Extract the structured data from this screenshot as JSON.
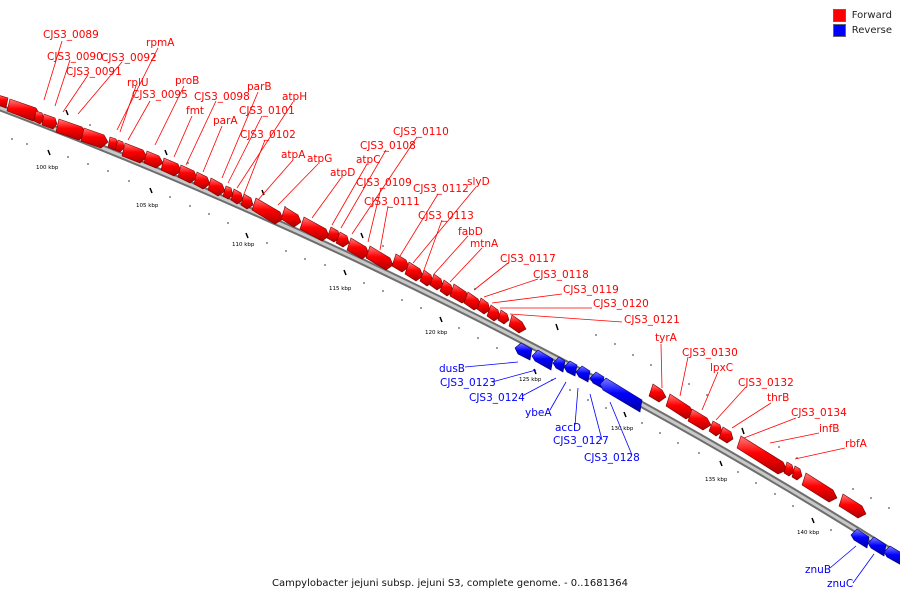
{
  "legend": {
    "forward_label": "Forward",
    "reverse_label": "Reverse",
    "forward_color": "#ff0000",
    "reverse_color": "#0000ff"
  },
  "caption": "Campylobacter jejuni subsp. jejuni S3, complete genome. - 0..1681364",
  "scale": {
    "unit": "kbp",
    "labels": [
      "100 kbp",
      "105 kbp",
      "110 kbp",
      "115 kbp",
      "120 kbp",
      "125 kbp",
      "130 kbp",
      "135 kbp",
      "140 kbp"
    ]
  },
  "forward_genes": [
    "CJS3_0089",
    "CJS3_0090",
    "CJS3_0091",
    "CJS3_0092",
    "rpmA",
    "rplU",
    "CJS3_0095",
    "proB",
    "fmt",
    "CJS3_0098",
    "parB",
    "parA",
    "CJS3_0101",
    "atpH",
    "CJS3_0102",
    "atpA",
    "atpG",
    "atpD",
    "atpC",
    "CJS3_0108",
    "CJS3_0110",
    "CJS3_0109",
    "CJS3_0111",
    "CJS3_0112",
    "slyD",
    "CJS3_0113",
    "fabD",
    "mtnA",
    "CJS3_0117",
    "CJS3_0118",
    "CJS3_0119",
    "CJS3_0120",
    "CJS3_0121",
    "tyrA",
    "CJS3_0130",
    "lpxC",
    "CJS3_0132",
    "thrB",
    "CJS3_0134",
    "infB",
    "rbfA"
  ],
  "reverse_genes": [
    "dusB",
    "CJS3_0123",
    "CJS3_0124",
    "ybeA",
    "accD",
    "CJS3_0127",
    "CJS3_0128",
    "znuB",
    "znuC"
  ]
}
